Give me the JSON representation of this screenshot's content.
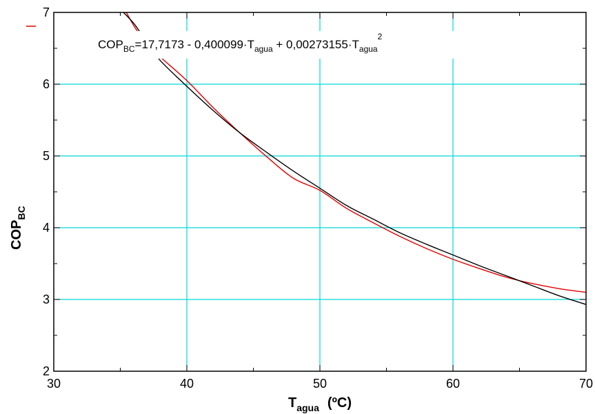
{
  "chart_data": {
    "type": "line",
    "title": "",
    "xlabel": {
      "main": "T",
      "sub": "agua",
      "unit": "(ºC)"
    },
    "ylabel": {
      "main": "COP",
      "sub": "BC"
    },
    "xlim": [
      30,
      70
    ],
    "ylim": [
      2,
      7
    ],
    "xticks": [
      30,
      40,
      50,
      60,
      70
    ],
    "yticks": [
      2,
      3,
      4,
      5,
      6,
      7
    ],
    "xtick_labels": [
      "30",
      "40",
      "50",
      "60",
      "70"
    ],
    "ytick_labels": [
      "2",
      "3",
      "4",
      "5",
      "6",
      "7"
    ],
    "grid": true,
    "colors": {
      "grid": "#00d8d8",
      "data_curve": "#e00000",
      "fit_curve": "#000000",
      "axis": "#000000"
    },
    "annotation": {
      "p1": "COP",
      "s1": "BC",
      "p2": "=17,7173 - 0,400099·T",
      "s2": "agua",
      "p3": " + 0,00273155·T",
      "s3": "agua",
      "sup": "2"
    },
    "series": [
      {
        "x": [
          35,
          36,
          37,
          38,
          40,
          42,
          44,
          46,
          48,
          50,
          52,
          54,
          56,
          58,
          60,
          62,
          64,
          66,
          68,
          70
        ],
        "y": [
          7.16,
          6.82,
          6.56,
          6.38,
          6.05,
          5.67,
          5.32,
          4.99,
          4.69,
          4.52,
          4.27,
          4.07,
          3.88,
          3.71,
          3.56,
          3.43,
          3.31,
          3.22,
          3.15,
          3.1
        ]
      },
      {
        "x": [
          34.9,
          36,
          37,
          38,
          40,
          42,
          44,
          46,
          48,
          50,
          52,
          54,
          56,
          58,
          60,
          62,
          64,
          66,
          68,
          70
        ],
        "y": [
          7.06,
          6.85,
          6.58,
          6.33,
          5.97,
          5.63,
          5.32,
          5.05,
          4.79,
          4.55,
          4.31,
          4.12,
          3.93,
          3.77,
          3.62,
          3.47,
          3.33,
          3.19,
          3.05,
          2.93
        ]
      }
    ]
  }
}
